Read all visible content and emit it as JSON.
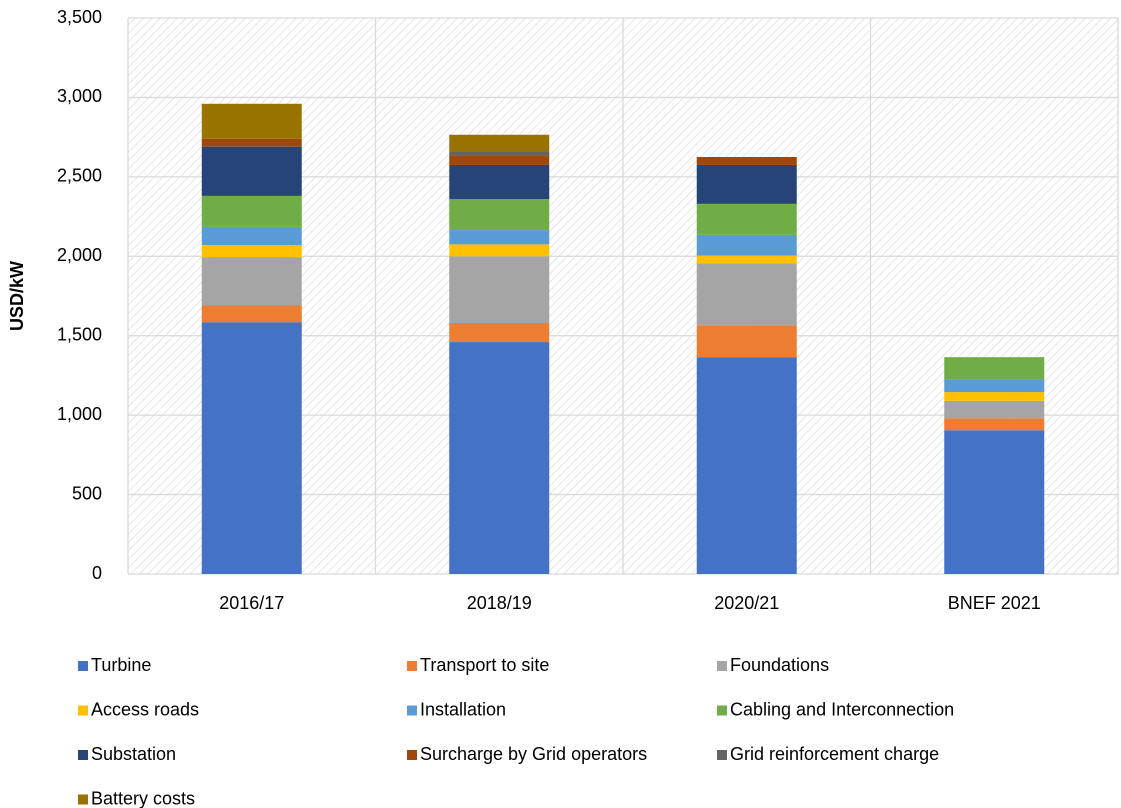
{
  "chart_data": {
    "type": "stacked_bar",
    "y_label": "USD/kW",
    "categories": [
      "2016/17",
      "2018/19",
      "2020/21",
      "BNEF 2021"
    ],
    "series": [
      {
        "name": "Turbine",
        "color": "#4472c4",
        "values": [
          1585,
          1460,
          1365,
          905
        ]
      },
      {
        "name": "Transport to site",
        "color": "#ed7d31",
        "values": [
          105,
          120,
          200,
          75
        ]
      },
      {
        "name": "Foundations",
        "color": "#a5a5a5",
        "values": [
          305,
          420,
          390,
          110
        ]
      },
      {
        "name": "Access roads",
        "color": "#ffc000",
        "values": [
          75,
          75,
          50,
          55
        ]
      },
      {
        "name": "Installation",
        "color": "#5b9bd5",
        "values": [
          115,
          90,
          130,
          80
        ]
      },
      {
        "name": "Cabling and Interconnection",
        "color": "#70ad47",
        "values": [
          195,
          195,
          195,
          140
        ]
      },
      {
        "name": "Substation",
        "color": "#264478",
        "values": [
          310,
          215,
          245,
          0
        ]
      },
      {
        "name": "Surcharge by Grid operators",
        "color": "#9e480e",
        "values": [
          50,
          60,
          50,
          0
        ]
      },
      {
        "name": "Grid reinforcement charge",
        "color": "#636363",
        "values": [
          0,
          25,
          0,
          0
        ]
      },
      {
        "name": "Battery costs",
        "color": "#997300",
        "values": [
          220,
          105,
          0,
          0
        ]
      }
    ],
    "ylim": [
      0,
      3500
    ],
    "yticks": [
      0,
      500,
      {
        "value": 1000,
        "label": "1,000"
      },
      {
        "value": 1500,
        "label": "1,500"
      },
      {
        "value": 2000,
        "label": "2,000"
      },
      {
        "value": 2500,
        "label": "2,500"
      },
      {
        "value": 3000,
        "label": "3,000"
      },
      {
        "value": 3500,
        "label": "3,500"
      }
    ],
    "grid": true,
    "legend": "bottom"
  }
}
